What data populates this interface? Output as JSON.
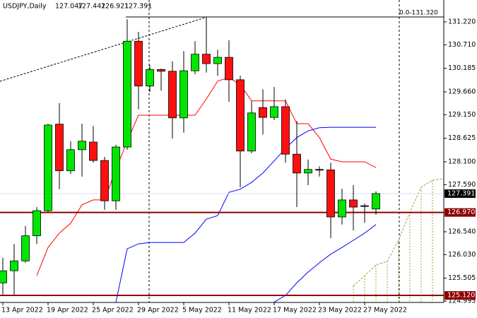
{
  "chart_data": {
    "type": "candlestick",
    "symbol": "USDJPY,Daily",
    "annotation": "0.0-131.320",
    "categories": [
      "13 Apr 2022",
      null,
      null,
      null,
      "19 Apr 2022",
      null,
      null,
      null,
      "25 Apr 2022",
      null,
      null,
      null,
      "29 Apr 2022",
      null,
      null,
      null,
      "5 May 2022",
      null,
      null,
      null,
      "11 May 2022",
      null,
      null,
      null,
      "17 May 2022",
      null,
      null,
      null,
      "23 May 2022",
      null,
      null,
      null,
      "27 May 2022",
      null,
      null,
      null,
      null,
      null,
      null,
      null
    ],
    "open": [
      125.4,
      125.67,
      125.89,
      126.45,
      127.01,
      128.94,
      127.9,
      128.37,
      128.54,
      128.13,
      127.23,
      128.43,
      130.79,
      129.79,
      130.16,
      130.12,
      129.08,
      130.13,
      130.5,
      130.29,
      130.43,
      129.93,
      128.34,
      129.31,
      129.09,
      129.33,
      128.27,
      127.85,
      127.93,
      127.92,
      126.87,
      127.25,
      127.12,
      127.047,
      null,
      null,
      null,
      null,
      null,
      null
    ],
    "high": [
      125.96,
      126.27,
      126.67,
      127.09,
      128.95,
      129.41,
      128.56,
      128.95,
      128.9,
      128.21,
      128.48,
      131.28,
      131.0,
      130.26,
      130.18,
      130.34,
      130.57,
      130.79,
      131.33,
      130.6,
      130.81,
      130.02,
      129.45,
      129.72,
      129.77,
      129.49,
      129.01,
      128.15,
      128.0,
      128.08,
      127.5,
      127.58,
      127.17,
      127.442,
      null,
      null,
      null,
      null,
      null,
      null
    ],
    "low": [
      125.14,
      125.14,
      125.85,
      126.27,
      126.98,
      127.49,
      127.83,
      127.77,
      128.08,
      127.03,
      127.03,
      128.37,
      129.27,
      129.66,
      129.69,
      128.62,
      128.75,
      130.05,
      130.09,
      130.02,
      129.44,
      127.53,
      128.29,
      128.71,
      129.03,
      128.08,
      127.09,
      127.58,
      127.77,
      126.4,
      126.7,
      126.57,
      126.74,
      126.921,
      null,
      null,
      null,
      null,
      null,
      null
    ],
    "close": [
      125.67,
      125.89,
      126.45,
      127.01,
      128.92,
      127.9,
      128.37,
      128.56,
      128.13,
      127.23,
      128.43,
      130.79,
      129.79,
      130.16,
      130.12,
      129.08,
      130.13,
      130.5,
      130.29,
      130.43,
      129.93,
      128.34,
      129.19,
      129.09,
      129.33,
      128.27,
      127.85,
      127.93,
      127.92,
      126.87,
      127.25,
      127.09,
      127.12,
      127.391,
      null,
      null,
      null,
      null,
      null,
      null
    ],
    "up_color": "#00e600",
    "down_color": "#ff1010",
    "overlays": [
      {
        "color": "#ff0000",
        "values": [
          null,
          null,
          null,
          125.56,
          126.19,
          126.51,
          126.73,
          127.14,
          127.25,
          127.25,
          127.93,
          128.56,
          129.14,
          129.14,
          129.14,
          129.14,
          129.14,
          129.14,
          129.5,
          129.9,
          129.98,
          129.82,
          129.46,
          129.46,
          129.46,
          129.46,
          128.95,
          128.95,
          128.64,
          128.16,
          128.1,
          128.1,
          128.1,
          127.97,
          null,
          null,
          null,
          null,
          null,
          null
        ]
      },
      {
        "color": "#0000ff",
        "values": [
          null,
          null,
          null,
          null,
          null,
          null,
          null,
          null,
          null,
          null,
          124.97,
          126.16,
          126.27,
          126.3,
          126.3,
          126.3,
          126.3,
          126.51,
          126.82,
          126.9,
          127.42,
          127.49,
          127.64,
          127.85,
          128.12,
          128.4,
          128.64,
          128.79,
          128.86,
          128.87,
          128.87,
          128.87,
          128.87,
          128.87,
          null,
          null,
          null,
          null,
          null,
          null
        ]
      },
      {
        "color": "#0000ff",
        "values": [
          null,
          null,
          null,
          null,
          null,
          null,
          null,
          null,
          null,
          null,
          null,
          null,
          null,
          null,
          null,
          null,
          null,
          null,
          null,
          null,
          null,
          null,
          null,
          null,
          124.97,
          125.12,
          125.4,
          125.64,
          125.85,
          126.04,
          126.19,
          126.35,
          126.51,
          126.7,
          null,
          null,
          null,
          null,
          null,
          null
        ]
      },
      {
        "color": "#a89a3a",
        "dash": true,
        "hatch": true,
        "values": [
          null,
          null,
          null,
          null,
          null,
          null,
          null,
          null,
          null,
          null,
          null,
          null,
          null,
          null,
          null,
          null,
          null,
          null,
          null,
          null,
          null,
          null,
          null,
          null,
          null,
          null,
          null,
          null,
          null,
          null,
          null,
          125.33,
          125.56,
          125.8,
          125.88,
          126.35,
          126.98,
          127.53,
          127.69,
          127.72
        ]
      }
    ],
    "levels": [
      {
        "price": 127.391,
        "color": "#000000",
        "line_color": "#d6e2f3"
      },
      {
        "price": {
          "value": 126.97,
          "label": "126.970"
        },
        "color": "#8b0000",
        "line_color": "#8b0000"
      },
      {
        "price": {
          "value": 125.12,
          "label": "125.120"
        },
        "color": "#8b0000",
        "line_color": "#8b0000"
      }
    ],
    "ylim": [
      124.963,
      131.709
    ],
    "yticks": [
      {
        "value": 131.22,
        "label": "131.220"
      },
      {
        "value": 130.71,
        "label": "130.710"
      },
      {
        "value": 130.185,
        "label": "130.185"
      },
      {
        "value": 129.66,
        "label": "129.660"
      },
      {
        "value": 129.15,
        "label": "129.150"
      },
      {
        "value": 128.625,
        "label": "128.625"
      },
      {
        "value": 128.1,
        "label": "128.100"
      },
      {
        "value": 127.59,
        "label": "127.590"
      },
      {
        "value": 126.54,
        "label": "126.540"
      },
      {
        "value": 126.03,
        "label": "126.030"
      },
      {
        "value": 125.505,
        "label": "125.505"
      },
      {
        "value": 124.995,
        "label": "124.995"
      }
    ],
    "grid": false
  }
}
